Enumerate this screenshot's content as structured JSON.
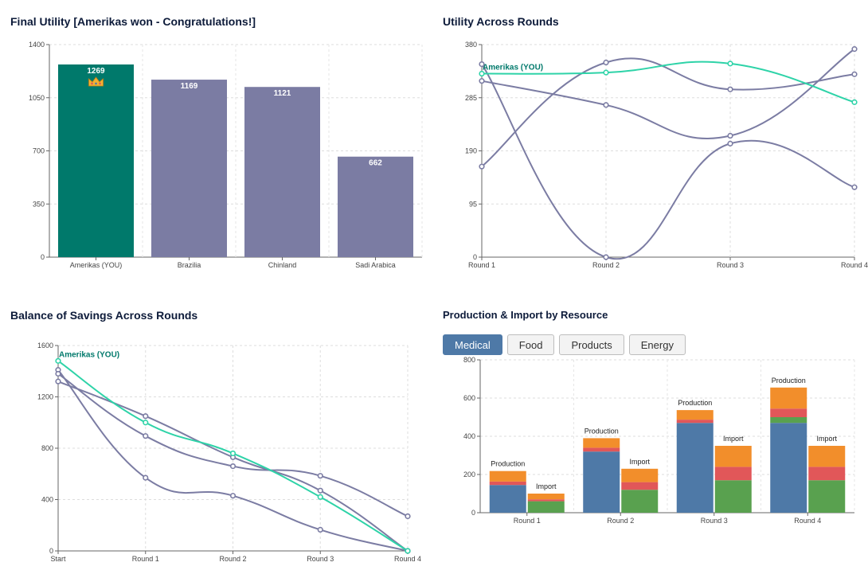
{
  "titles": {
    "final_utility": "Final Utility [Amerikas won - Congratulations!]",
    "utility_rounds": "Utility Across Rounds",
    "savings": "Balance of Savings Across Rounds",
    "production": "Production & Import by Resource"
  },
  "colors": {
    "you": "#00796b",
    "you_line": "#2ed3a8",
    "other": "#7b7ca3",
    "medical_blue": "#4e79a7",
    "green": "#59a14f",
    "red": "#e15759",
    "orange": "#f28e2b"
  },
  "tabs": [
    {
      "label": "Medical",
      "active": true
    },
    {
      "label": "Food",
      "active": false
    },
    {
      "label": "Products",
      "active": false
    },
    {
      "label": "Energy",
      "active": false
    }
  ],
  "chart_data": [
    {
      "id": "final_utility",
      "type": "bar",
      "title": "Final Utility [Amerikas won - Congratulations!]",
      "categories": [
        "Amerikas (YOU)",
        "Brazilia",
        "Chinland",
        "Sadi Arabica"
      ],
      "values": [
        1269,
        1169,
        1121,
        662
      ],
      "data_labels": [
        "1269",
        "1169",
        "1121",
        "662"
      ],
      "winner_icon": "crown-icon",
      "ylim": [
        0,
        1400
      ],
      "yticks": [
        0,
        350,
        700,
        1050,
        1400
      ],
      "grid": true
    },
    {
      "id": "utility_rounds",
      "type": "line",
      "title": "Utility Across Rounds",
      "x": [
        "Round 1",
        "Round 2",
        "Round 3",
        "Round 4"
      ],
      "ylim": [
        0,
        380
      ],
      "yticks": [
        0,
        95,
        190,
        285,
        380
      ],
      "grid": true,
      "annotation": "Amerikas (YOU)",
      "series": [
        {
          "values": [
            328,
            330,
            346,
            277
          ],
          "highlight": true
        },
        {
          "values": [
            315,
            272,
            217,
            372
          ]
        },
        {
          "values": [
            345,
            0,
            203,
            125
          ]
        },
        {
          "values": [
            162,
            348,
            300,
            327
          ]
        }
      ]
    },
    {
      "id": "savings",
      "type": "line",
      "title": "Balance of Savings Across Rounds",
      "x": [
        "Start",
        "Round 1",
        "Round 2",
        "Round 3",
        "Round 4"
      ],
      "ylim": [
        0,
        1600
      ],
      "yticks": [
        0,
        400,
        800,
        1200,
        1600
      ],
      "grid": true,
      "annotation": "Amerikas (YOU)",
      "series": [
        {
          "values": [
            1480,
            1000,
            760,
            420,
            0
          ],
          "highlight": true
        },
        {
          "values": [
            1320,
            1050,
            730,
            470,
            0
          ]
        },
        {
          "values": [
            1410,
            570,
            430,
            165,
            0
          ]
        },
        {
          "values": [
            1380,
            895,
            660,
            585,
            270
          ]
        }
      ]
    },
    {
      "id": "production",
      "type": "bar",
      "stacked": true,
      "title": "Production & Import by Resource",
      "categories": [
        "Round 1",
        "Round 2",
        "Round 3",
        "Round 4"
      ],
      "ylim": [
        0,
        800
      ],
      "yticks": [
        0,
        200,
        400,
        600,
        800
      ],
      "grid": true,
      "groups": [
        {
          "label": "Production",
          "stacks": [
            [
              145,
              18,
              55
            ],
            [
              320,
              20,
              50
            ],
            [
              470,
              17,
              50
            ],
            [
              470,
              30,
              45,
              110
            ]
          ]
        },
        {
          "label": "Import",
          "stacks": [
            [
              60,
              10,
              30
            ],
            [
              120,
              40,
              70
            ],
            [
              170,
              70,
              110
            ],
            [
              170,
              70,
              110
            ]
          ]
        }
      ]
    }
  ]
}
